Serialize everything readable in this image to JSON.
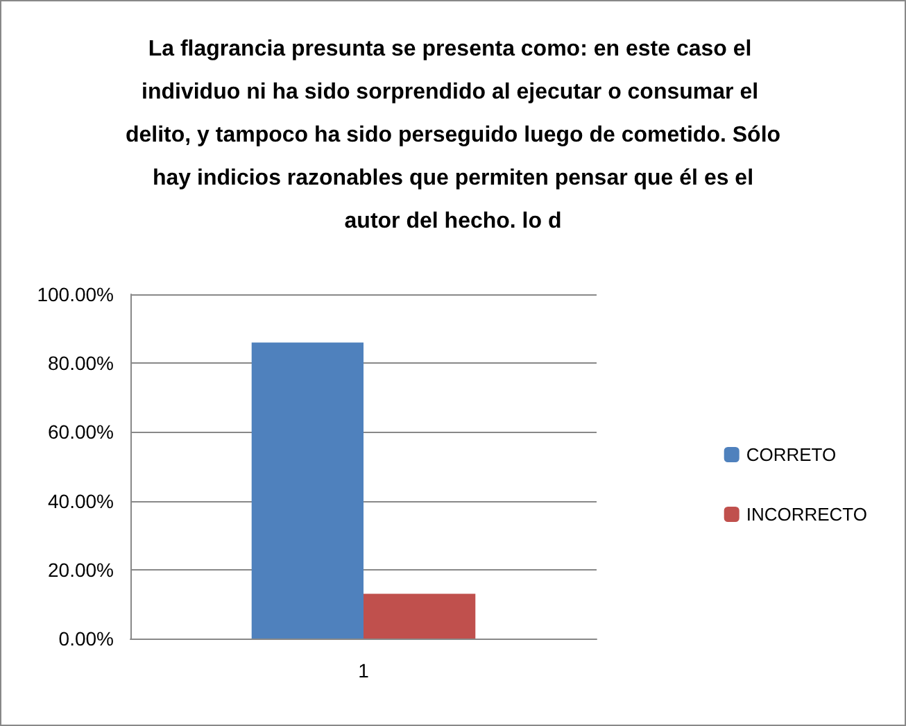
{
  "chart_data": {
    "type": "bar",
    "title": "La flagrancia presunta se presenta como: en este caso el individuo ni ha sido sorprendido al ejecutar o consumar el delito, y tampoco ha sido perseguido luego de cometido. Sólo hay indicios razonables que permiten pensar que él es el autor del hecho. lo d",
    "categories": [
      "1"
    ],
    "series": [
      {
        "name": "CORRETO",
        "color": "#4f81bd",
        "values": [
          86
        ]
      },
      {
        "name": "INCORRECTO",
        "color": "#c0504d",
        "values": [
          13
        ]
      }
    ],
    "ylim": [
      0,
      100
    ],
    "yticks": [
      {
        "value": 0,
        "label": "0.00%"
      },
      {
        "value": 20,
        "label": "20.00%"
      },
      {
        "value": 40,
        "label": "40.00%"
      },
      {
        "value": 60,
        "label": "60.00%"
      },
      {
        "value": 80,
        "label": "80.00%"
      },
      {
        "value": 100,
        "label": "100.00%"
      }
    ],
    "grid": "y",
    "legend": "right"
  }
}
